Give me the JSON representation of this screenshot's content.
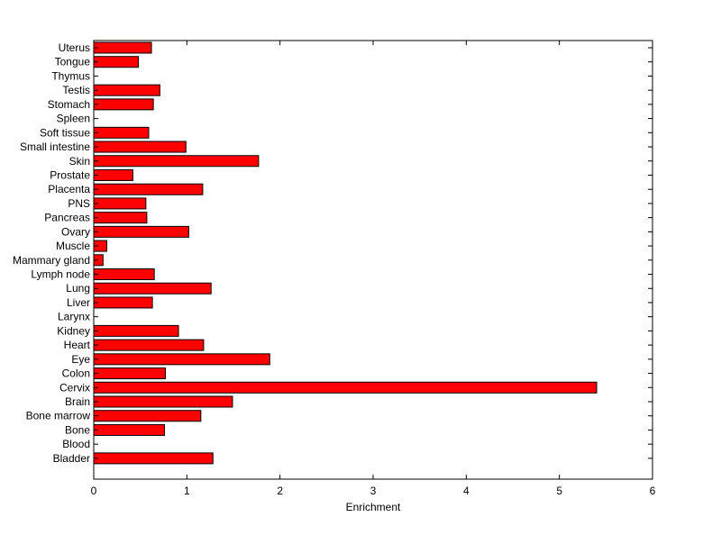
{
  "chart_data": {
    "type": "bar",
    "orientation": "horizontal",
    "xlabel": "Enrichment",
    "ylabel": "",
    "title": "",
    "xlim": [
      0,
      6
    ],
    "xticks": [
      0,
      1,
      2,
      3,
      4,
      5,
      6
    ],
    "grid": false,
    "legend": "none",
    "bar_color": "#ff0000",
    "bar_edge_color": "#000000",
    "categories": [
      "Bladder",
      "Blood",
      "Bone",
      "Bone marrow",
      "Brain",
      "Cervix",
      "Colon",
      "Eye",
      "Heart",
      "Kidney",
      "Larynx",
      "Liver",
      "Lung",
      "Lymph node",
      "Mammary gland",
      "Muscle",
      "Ovary",
      "Pancreas",
      "PNS",
      "Placenta",
      "Prostate",
      "Skin",
      "Small intestine",
      "Soft tissue",
      "Spleen",
      "Stomach",
      "Testis",
      "Thymus",
      "Tongue",
      "Uterus"
    ],
    "values": [
      1.28,
      0,
      0.76,
      1.15,
      1.49,
      5.4,
      0.77,
      1.89,
      1.18,
      0.91,
      0,
      0.63,
      1.26,
      0.65,
      0.1,
      0.14,
      1.02,
      0.57,
      0.56,
      1.17,
      0.42,
      1.77,
      0.99,
      0.59,
      0,
      0.64,
      0.71,
      0,
      0.48,
      0.62
    ]
  }
}
